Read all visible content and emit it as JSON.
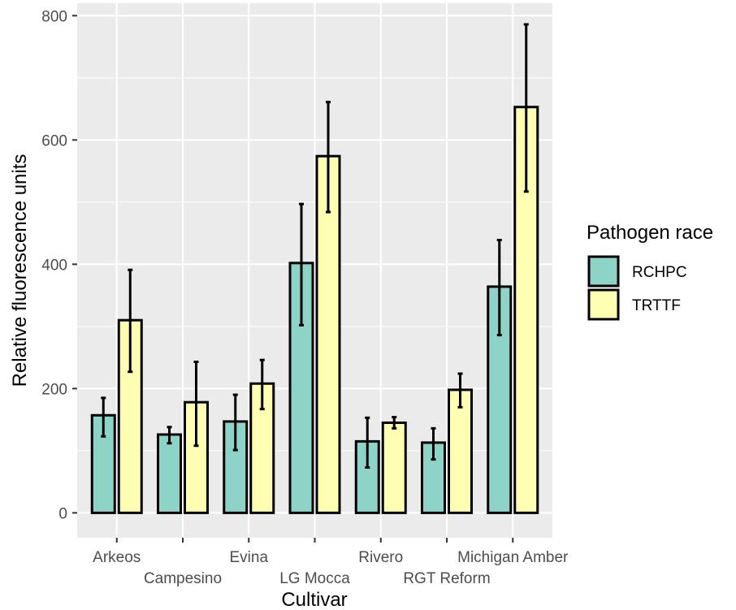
{
  "chart_data": {
    "type": "bar",
    "xlabel": "Cultivar",
    "ylabel": "Relative fluorescence units",
    "ylim": [
      -40,
      820
    ],
    "yticks": [
      0,
      200,
      400,
      600,
      800
    ],
    "categories": [
      "Arkeos",
      "Campesino",
      "Evina",
      "LG Mocca",
      "Rivero",
      "RGT Reform",
      "Michigan Amber"
    ],
    "legend": {
      "title": "Pathogen race",
      "position": "right"
    },
    "grid": true,
    "series": [
      {
        "name": "RCHPC",
        "color": "#8ed3c7",
        "values": [
          157,
          126,
          147,
          402,
          115,
          113,
          364
        ],
        "error_low": [
          123,
          112,
          101,
          302,
          73,
          86,
          286
        ],
        "error_high": [
          185,
          138,
          190,
          497,
          153,
          136,
          439
        ]
      },
      {
        "name": "TRTTF",
        "color": "#ffffb3",
        "values": [
          310,
          178,
          208,
          574,
          145,
          198,
          653
        ],
        "error_low": [
          227,
          108,
          167,
          484,
          136,
          170,
          517
        ],
        "error_high": [
          391,
          243,
          246,
          661,
          154,
          224,
          786
        ]
      }
    ]
  }
}
